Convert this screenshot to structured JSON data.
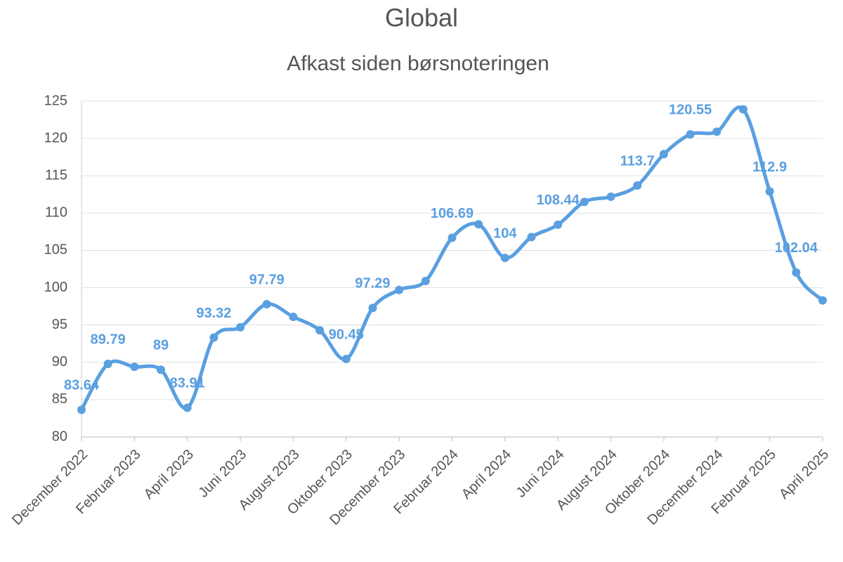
{
  "chart_data": {
    "type": "line",
    "title": "Global",
    "subtitle": "Afkast siden børsnoteringen",
    "categories": [
      "December 2022",
      null,
      "Februar 2023",
      null,
      "April 2023",
      null,
      "Juni 2023",
      null,
      "August 2023",
      null,
      "Oktober 2023",
      null,
      "December 2023",
      null,
      "Februar 2024",
      null,
      "April 2024",
      null,
      "Juni 2024",
      null,
      "August 2024",
      null,
      "Oktober 2024",
      null,
      "December 2024",
      null,
      "Februar 2025",
      null,
      "April 2025"
    ],
    "series": [
      {
        "name": "Global",
        "color": "#5a9fe0",
        "values": [
          83.64,
          89.79,
          89.4,
          89,
          83.91,
          93.32,
          94.7,
          97.79,
          96.1,
          94.3,
          90.45,
          97.29,
          99.7,
          100.9,
          106.69,
          108.5,
          104,
          106.8,
          108.44,
          111.5,
          112.2,
          113.7,
          117.9,
          120.55,
          120.9,
          123.9,
          112.9,
          102.04,
          98.3
        ],
        "value_labels": [
          "83.64",
          "89.79",
          null,
          "89",
          "83.91",
          "93.32",
          null,
          "97.79",
          null,
          null,
          "90.45",
          "97.29",
          null,
          null,
          "106.69",
          null,
          "104",
          null,
          "108.44",
          null,
          null,
          "113.7",
          null,
          "120.55",
          null,
          null,
          "112.9",
          "102.04",
          null
        ]
      }
    ],
    "ylim": [
      80,
      125
    ],
    "yticks": [
      80,
      85,
      90,
      95,
      100,
      105,
      110,
      115,
      120,
      125
    ],
    "grid": true,
    "smooth": true
  }
}
